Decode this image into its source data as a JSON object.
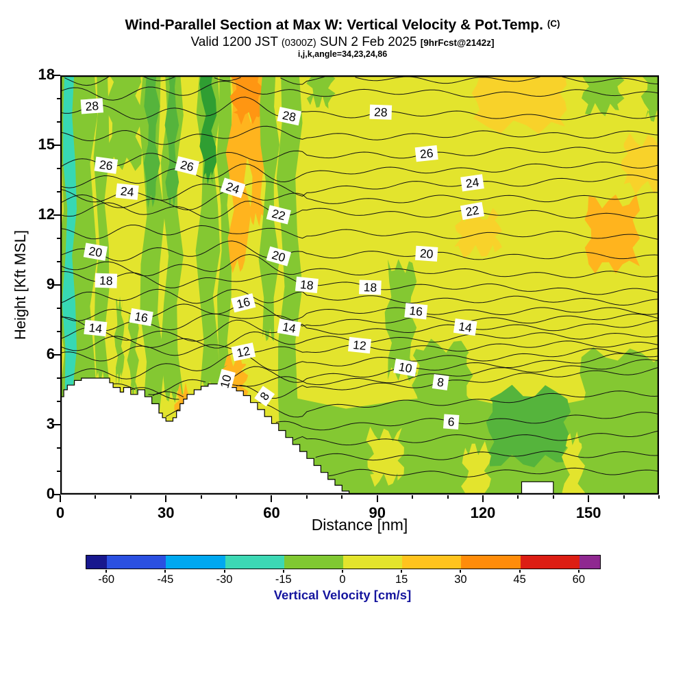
{
  "header": {
    "title": "Wind-Parallel Section at Max W: Vertical Velocity & Pot.Temp.",
    "title_unit": "(C)",
    "subtitle_pre": "Valid 1200 JST",
    "subtitle_z": "(0300Z)",
    "subtitle_date": "SUN 2 Feb 2025",
    "subtitle_fcst": "[9hrFcst@2142z]",
    "parameters": "i,j,k,angle=34,23,24,86"
  },
  "axes": {
    "x_label": "Distance [nm]",
    "y_label": "Height [Kft MSL]",
    "x_ticks": [
      0,
      30,
      60,
      90,
      120,
      150
    ],
    "y_ticks": [
      0,
      3,
      6,
      9,
      12,
      15,
      18
    ],
    "x_minor_step": 10,
    "y_minor_step": 1,
    "x_range": [
      0,
      170
    ],
    "y_range": [
      0,
      18
    ]
  },
  "colorbar": {
    "label": "Vertical Velocity [cm/s]",
    "ticks": [
      -60,
      -45,
      -30,
      -15,
      0,
      15,
      30,
      45,
      60
    ],
    "colors": [
      "#18188e",
      "#2b50e1",
      "#00a8f0",
      "#3cd8b4",
      "#80c832",
      "#e3e42d",
      "#ffc31e",
      "#ff8c0a",
      "#dc1e14",
      "#8f2890"
    ]
  },
  "palette": {
    "bg": "#e3e42d",
    "green": "#84c832",
    "green_mid": "#55b43c",
    "green_dark": "#2f9e32",
    "cyan": "#37d8b4",
    "orange": "#ffb41e",
    "orange_deep": "#ff9612",
    "yellow_orange": "#f8d22a"
  },
  "chart_data": {
    "type": "heatmap",
    "title": "Wind-Parallel Section at Max W: Vertical Velocity & Pot.Temp. (C)",
    "subtitle": "Valid 1200 JST (0300Z) SUN 2 Feb 2025 [9hrFcst@2142z] i,j,k,angle=34,23,24,86",
    "xlabel": "Distance [nm]",
    "ylabel": "Height [Kft MSL]",
    "xlim": [
      0,
      170
    ],
    "ylim": [
      0,
      18
    ],
    "x_ticks": [
      0,
      30,
      60,
      90,
      120,
      150
    ],
    "y_ticks": [
      0,
      3,
      6,
      9,
      12,
      15,
      18
    ],
    "fill_variable": "Vertical Velocity [cm/s]",
    "fill_scale_ticks": [
      -60,
      -45,
      -30,
      -15,
      0,
      15,
      30,
      45,
      60
    ],
    "fill_background_range_cm_s": [
      0,
      15
    ],
    "updraft_bands_nm": [
      [
        48,
        53
      ],
      [
        54,
        57
      ]
    ],
    "downdraft_bands_nm": [
      [
        0,
        9
      ],
      [
        10,
        13
      ],
      [
        24,
        28
      ],
      [
        30,
        34
      ],
      [
        40,
        48
      ],
      [
        57,
        61
      ],
      [
        63,
        67
      ]
    ],
    "low_level_downdraft_region_nm": [
      66,
      170
    ],
    "contour_variable": "Potential Temperature (C)",
    "contour_interval": 1,
    "labeled_values": [
      6,
      8,
      10,
      12,
      14,
      16,
      18,
      20,
      22,
      24,
      26,
      28
    ],
    "contour_levels": [
      [
        3,
        0.8,
        1.0
      ],
      [
        4,
        1.4,
        1.8
      ],
      [
        5,
        2.0,
        2.6
      ],
      [
        6,
        2.6,
        3.4,
        [
          [
            111,
            4
          ]
        ]
      ],
      [
        7,
        3.2,
        4.4
      ],
      [
        8,
        3.8,
        5.4,
        [
          [
            58,
            -55
          ],
          [
            108,
            8
          ]
        ]
      ],
      [
        9,
        4.1,
        5.7
      ],
      [
        10,
        4.4,
        6.0,
        [
          [
            47,
            -75
          ],
          [
            98,
            10
          ]
        ]
      ],
      [
        11,
        5.2,
        6.2
      ],
      [
        12,
        6.0,
        6.5,
        [
          [
            52,
            -12
          ],
          [
            85,
            6
          ]
        ]
      ],
      [
        13,
        6.4,
        6.9
      ],
      [
        14,
        6.8,
        7.3,
        [
          [
            10,
            6
          ],
          [
            65,
            10
          ],
          [
            115,
            8
          ]
        ]
      ],
      [
        15,
        7.3,
        7.6
      ],
      [
        16,
        7.8,
        7.9,
        [
          [
            23,
            10
          ],
          [
            52,
            -14
          ],
          [
            101,
            6
          ]
        ]
      ],
      [
        17,
        8.5,
        8.3
      ],
      [
        18,
        9.3,
        8.7,
        [
          [
            13,
            2
          ],
          [
            70,
            6
          ],
          [
            88,
            2
          ]
        ]
      ],
      [
        19,
        9.8,
        9.4
      ],
      [
        20,
        10.4,
        10.2,
        [
          [
            10,
            10
          ],
          [
            62,
            16
          ],
          [
            104,
            4
          ]
        ]
      ],
      [
        21,
        11.3,
        11.1
      ],
      [
        22,
        12.2,
        12.0,
        [
          [
            62,
            14
          ],
          [
            117,
            -10
          ]
        ]
      ],
      [
        23,
        12.5,
        12.8
      ],
      [
        24,
        12.8,
        13.6,
        [
          [
            19,
            6
          ],
          [
            49,
            18
          ],
          [
            117,
            -8
          ]
        ]
      ],
      [
        25,
        13.5,
        14.2
      ],
      [
        26,
        14.2,
        14.9,
        [
          [
            13,
            8
          ],
          [
            36,
            14
          ],
          [
            104,
            -6
          ]
        ]
      ],
      [
        27,
        15.3,
        15.5
      ],
      [
        28,
        16.5,
        16.2,
        [
          [
            9,
            -4
          ],
          [
            65,
            12
          ],
          [
            91,
            2
          ]
        ]
      ],
      [
        29,
        17.3,
        17.2
      ],
      [
        30,
        17.9,
        17.8
      ]
    ],
    "terrain_profile": [
      [
        0,
        4.2
      ],
      [
        1,
        4.5
      ],
      [
        2,
        4.7
      ],
      [
        4,
        4.9
      ],
      [
        6,
        5.0
      ],
      [
        14,
        4.8
      ],
      [
        15,
        4.6
      ],
      [
        17,
        4.4
      ],
      [
        18,
        4.6
      ],
      [
        20,
        4.3
      ],
      [
        22,
        4.5
      ],
      [
        24,
        4.2
      ],
      [
        26,
        3.9
      ],
      [
        28,
        3.5
      ],
      [
        29,
        3.3
      ],
      [
        30,
        3.15
      ],
      [
        32,
        3.3
      ],
      [
        33,
        3.6
      ],
      [
        34,
        3.9
      ],
      [
        35,
        4.1
      ],
      [
        36,
        4.3
      ],
      [
        38,
        4.5
      ],
      [
        40,
        4.65
      ],
      [
        42,
        4.75
      ],
      [
        46,
        4.75
      ],
      [
        48,
        4.6
      ],
      [
        50,
        4.45
      ],
      [
        52,
        4.25
      ],
      [
        54,
        3.95
      ],
      [
        56,
        3.65
      ],
      [
        58,
        3.35
      ],
      [
        60,
        3.05
      ],
      [
        62,
        2.75
      ],
      [
        64,
        2.45
      ],
      [
        66,
        2.15
      ],
      [
        68,
        1.85
      ],
      [
        70,
        1.55
      ],
      [
        72,
        1.25
      ],
      [
        74,
        0.95
      ],
      [
        76,
        0.65
      ],
      [
        78,
        0.4
      ],
      [
        80,
        0.15
      ],
      [
        82,
        0
      ],
      [
        131,
        0.55
      ],
      [
        140,
        0
      ],
      [
        170,
        0
      ]
    ],
    "fill_regions": [
      [
        0,
        9.5,
        4.0,
        18.3,
        "green"
      ],
      [
        1.3,
        4.1,
        4.2,
        18.3,
        "cyan"
      ],
      [
        10.3,
        13.4,
        5.0,
        18.3,
        "green"
      ],
      [
        14,
        22.5,
        14.2,
        18.3,
        "green"
      ],
      [
        15.8,
        17.8,
        5.0,
        8.2,
        "green"
      ],
      [
        19.6,
        21.8,
        4.4,
        7.6,
        "green"
      ],
      [
        23.5,
        28.5,
        3.6,
        18.3,
        "green"
      ],
      [
        24.5,
        27.5,
        12.6,
        18.3,
        "green_mid"
      ],
      [
        29.6,
        33.8,
        4.2,
        18.3,
        "green"
      ],
      [
        30.4,
        33.0,
        12.6,
        18.3,
        "green_mid"
      ],
      [
        33,
        36.6,
        3.0,
        4.5,
        "orange"
      ],
      [
        39.6,
        44.5,
        4.6,
        18.3,
        "green"
      ],
      [
        40.4,
        43.8,
        13.6,
        18.3,
        "green_dark"
      ],
      [
        45.2,
        48.2,
        4.6,
        18.3,
        "green"
      ],
      [
        46.5,
        52.5,
        4.2,
        5.8,
        "orange"
      ],
      [
        48.2,
        53.2,
        9.8,
        18.3,
        "orange"
      ],
      [
        53.8,
        57.6,
        11.8,
        18.3,
        "orange"
      ],
      [
        49.2,
        56.8,
        16.2,
        18.3,
        "orange_deep"
      ],
      [
        57.4,
        61.2,
        6.8,
        18.3,
        "green"
      ],
      [
        62.6,
        67.6,
        1.9,
        18.3,
        "green"
      ],
      [
        66,
        172,
        -0.3,
        4.0,
        "green"
      ],
      [
        122,
        144,
        1.4,
        4.4,
        "green_mid"
      ],
      [
        148,
        172,
        0.3,
        6.0,
        "green"
      ],
      [
        88,
        97,
        0.6,
        2.6,
        "bg"
      ],
      [
        115,
        121.5,
        -0.3,
        2.0,
        "bg"
      ],
      [
        143.5,
        148,
        -0.3,
        2.4,
        "bg"
      ],
      [
        71,
        77,
        16.8,
        18.3,
        "green"
      ],
      [
        93,
        100,
        5.2,
        9.8,
        "green"
      ],
      [
        101,
        116,
        3.4,
        6.4,
        "green"
      ],
      [
        149,
        159,
        16.5,
        18.3,
        "green"
      ],
      [
        150,
        163.5,
        9.8,
        12.6,
        "orange"
      ],
      [
        113,
        124.5,
        10.4,
        12.0,
        "yellow_orange"
      ],
      [
        118,
        143,
        15.8,
        18.3,
        "yellow_orange"
      ],
      [
        160,
        172,
        13.2,
        15.2,
        "yellow_orange"
      ],
      [
        166,
        172,
        16.2,
        18.3,
        "green"
      ]
    ]
  }
}
